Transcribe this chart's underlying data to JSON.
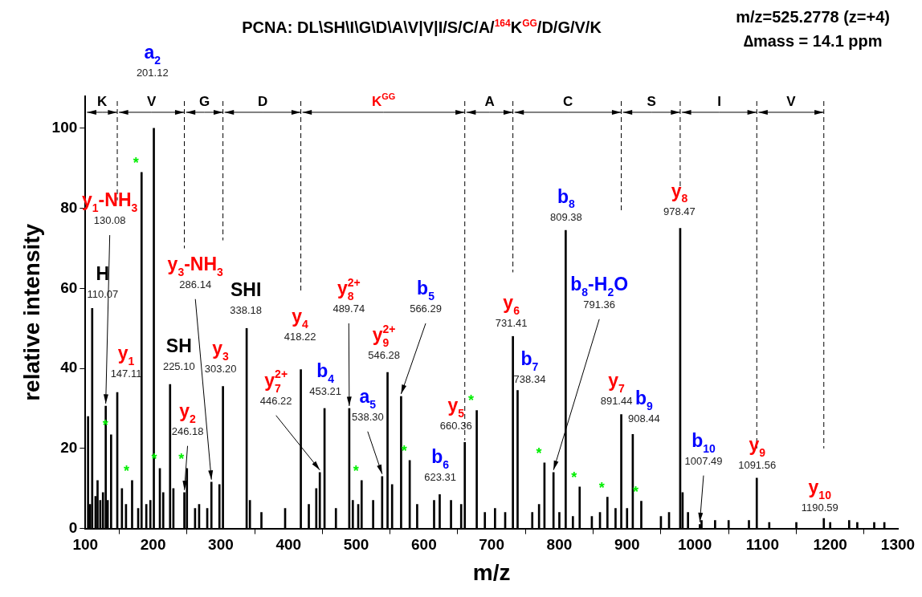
{
  "chart_data": {
    "type": "bar",
    "title": "PCNA: DL\\SH\\I\\G\\D\\A\\V|V|I/S/C/A/$^{164}$K$^{GG}$/D/G/V/K",
    "xlabel": "m/z",
    "ylabel": "relative intensity",
    "x": [
      104,
      107,
      110.07,
      115,
      118,
      122,
      126,
      130.08,
      133,
      138,
      147.11,
      154,
      160,
      169,
      178,
      183,
      190,
      196,
      201.12,
      210,
      215,
      225.1,
      230,
      246.18,
      250,
      262,
      268,
      280,
      286.14,
      298,
      303.2,
      338.18,
      343,
      360,
      395,
      418.22,
      430,
      441,
      446.22,
      453.21,
      470,
      489.74,
      495,
      503,
      508,
      525,
      538.3,
      546.28,
      553,
      566.29,
      579,
      590,
      615,
      623.31,
      640,
      655,
      660.36,
      678,
      690,
      705,
      720,
      731.41,
      738.34,
      760,
      770,
      778,
      791.36,
      800,
      809.38,
      820,
      830,
      848,
      860,
      871,
      883,
      891.44,
      900,
      908.44,
      921,
      950,
      962,
      978.47,
      982,
      990,
      1007.49,
      1010,
      1030,
      1050,
      1080,
      1091.56,
      1110,
      1150,
      1190.59,
      1200,
      1228,
      1240,
      1265,
      1280
    ],
    "series": [
      {
        "color": "#000000",
        "values": [
          28,
          6,
          55,
          8,
          12,
          7,
          9,
          30.6,
          7,
          23.4,
          34,
          10,
          6,
          12,
          5,
          89,
          6,
          7,
          100,
          15,
          9,
          36,
          10,
          9,
          15,
          5,
          6,
          5,
          11.6,
          11,
          35.5,
          50,
          7,
          4,
          5,
          39.7,
          6,
          10,
          14,
          30,
          5,
          30,
          7,
          6,
          12,
          7,
          13,
          39,
          11,
          33,
          17,
          6,
          7,
          8.5,
          7,
          6,
          21.5,
          29.5,
          4,
          5,
          4,
          48,
          34.5,
          4,
          6,
          16.4,
          14,
          4,
          74.5,
          3,
          10.4,
          3,
          4,
          7.8,
          5,
          28.5,
          5,
          23.5,
          6.8,
          3,
          4,
          75,
          9,
          4,
          1,
          2,
          2,
          2,
          2,
          12.6,
          1.5,
          1.5,
          2.5,
          1.5,
          2,
          1.5,
          1.5,
          1.5
        ]
      }
    ],
    "xlim": [
      100,
      1300
    ],
    "xticks": [
      100,
      200,
      300,
      400,
      500,
      600,
      700,
      800,
      900,
      1000,
      1100,
      1200,
      1300
    ],
    "ylim": [
      0,
      108
    ],
    "yticks": [
      0,
      20,
      40,
      60,
      80,
      100
    ],
    "ref_lines": [
      {
        "axis": "x",
        "value": 147.11,
        "label": null,
        "color": "#000000",
        "line_style": "dashed"
      },
      {
        "axis": "x",
        "value": 246.18,
        "label": null,
        "color": "#000000",
        "line_style": "dashed"
      },
      {
        "axis": "x",
        "value": 303.2,
        "label": null,
        "color": "#000000",
        "line_style": "dashed"
      },
      {
        "axis": "x",
        "value": 418.22,
        "label": null,
        "color": "#000000",
        "line_style": "dashed"
      },
      {
        "axis": "x",
        "value": 660.36,
        "label": null,
        "color": "#000000",
        "line_style": "dashed"
      },
      {
        "axis": "x",
        "value": 731.41,
        "label": null,
        "color": "#000000",
        "line_style": "dashed"
      },
      {
        "axis": "x",
        "value": 891.44,
        "label": null,
        "color": "#000000",
        "line_style": "dashed"
      },
      {
        "axis": "x",
        "value": 978.47,
        "label": null,
        "color": "#000000",
        "line_style": "dashed"
      },
      {
        "axis": "x",
        "value": 1091.56,
        "label": null,
        "color": "#000000",
        "line_style": "dashed"
      },
      {
        "axis": "x",
        "value": 1190.59,
        "label": null,
        "color": "#000000",
        "line_style": "dashed"
      }
    ],
    "annotations": [
      "m/z=525.2778 (z=+4)",
      "∆mass = 14.1 ppm",
      "a$_{2}$",
      "201.12",
      {
        "text": "K",
        "x": 147.11,
        "y": 104
      },
      {
        "text": "V",
        "x": 246.18,
        "y": 104
      },
      {
        "text": "G",
        "x": 303.2,
        "y": 104
      },
      {
        "text": "D",
        "x": 418.22,
        "y": 104
      },
      {
        "text": "K$^{GG}$",
        "x": 660.36,
        "y": 104
      },
      {
        "text": "A",
        "x": 731.41,
        "y": 104
      },
      {
        "text": "C",
        "x": 891.44,
        "y": 104
      },
      {
        "text": "S",
        "x": 978.47,
        "y": 104
      },
      {
        "text": "I",
        "x": 1091.56,
        "y": 104
      },
      {
        "text": "V",
        "x": 1190.59,
        "y": 104
      },
      {
        "text": "H",
        "x": 110.07,
        "y": 55
      },
      {
        "text": "110.07",
        "x": 110.07,
        "y": 55
      },
      {
        "text": "y$_{1}$-NH$_{3}$",
        "x": 130.08,
        "y": 30.6
      },
      {
        "text": "130.08",
        "x": 130.08,
        "y": 30.6
      },
      {
        "text": "y$_{1}$",
        "x": 147.11,
        "y": 34
      },
      {
        "text": "147.11",
        "x": 147.11,
        "y": 34
      },
      {
        "text": "SH",
        "x": 225.1,
        "y": 36
      },
      {
        "text": "225.10",
        "x": 225.1,
        "y": 36
      },
      {
        "text": "y$_{2}$",
        "x": 246.18,
        "y": 9
      },
      {
        "text": "246.18",
        "x": 246.18,
        "y": 9
      },
      {
        "text": "y$_{3}$-NH$_{3}$",
        "x": 286.14,
        "y": 11.6
      },
      {
        "text": "286.14",
        "x": 286.14,
        "y": 11.6
      },
      {
        "text": "y$_{3}$",
        "x": 303.2,
        "y": 35.5
      },
      {
        "text": "303.20",
        "x": 303.2,
        "y": 35.5
      },
      {
        "text": "SHI",
        "x": 338.18,
        "y": 50
      },
      {
        "text": "338.18",
        "x": 338.18,
        "y": 50
      },
      {
        "text": "y$_{4}$",
        "x": 418.22,
        "y": 39.7
      },
      {
        "text": "418.22",
        "x": 418.22,
        "y": 39.7
      },
      {
        "text": "y$_{7}$$^{2+}$",
        "x": 446.22,
        "y": 14
      },
      {
        "text": "446.22",
        "x": 446.22,
        "y": 14
      },
      {
        "text": "b$_{4}$",
        "x": 453.21,
        "y": 30
      },
      {
        "text": "453.21",
        "x": 453.21,
        "y": 30
      },
      {
        "text": "y$_{8}$$^{2+}$",
        "x": 489.74,
        "y": 30
      },
      {
        "text": "489.74",
        "x": 489.74,
        "y": 30
      },
      {
        "text": "y$_{9}$$^{2+}$",
        "x": 546.28,
        "y": 39
      },
      {
        "text": "546.28",
        "x": 546.28,
        "y": 39
      },
      {
        "text": "a$_{5}$",
        "x": 538.3,
        "y": 13
      },
      {
        "text": "538.30",
        "x": 538.3,
        "y": 13
      },
      {
        "text": "b$_{5}$",
        "x": 566.29,
        "y": 33
      },
      {
        "text": "566.29",
        "x": 566.29,
        "y": 33
      },
      {
        "text": "b$_{6}$",
        "x": 623.31,
        "y": 8.5
      },
      {
        "text": "623.31",
        "x": 623.31,
        "y": 8.5
      },
      {
        "text": "y$_{5}$",
        "x": 660.36,
        "y": 21.5
      },
      {
        "text": "660.36",
        "x": 660.36,
        "y": 21.5
      },
      {
        "text": "y$_{6}$",
        "x": 731.41,
        "y": 48
      },
      {
        "text": "731.41",
        "x": 731.41,
        "y": 48
      },
      {
        "text": "b$_{7}$",
        "x": 738.34,
        "y": 34.5
      },
      {
        "text": "738.34",
        "x": 738.34,
        "y": 34.5
      },
      {
        "text": "b$_{8}$",
        "x": 809.38,
        "y": 74.5
      },
      {
        "text": "809.38",
        "x": 809.38,
        "y": 74.5
      },
      {
        "text": "b$_{8}$-H$_{2}$O",
        "x": 791.36,
        "y": 14
      },
      {
        "text": "791.36",
        "x": 791.36,
        "y": 14
      },
      {
        "text": "y$_{7}$",
        "x": 891.44,
        "y": 28.5
      },
      {
        "text": "891.44",
        "x": 891.44,
        "y": 28.5
      },
      {
        "text": "b$_{9}$",
        "x": 908.44,
        "y": 23.5
      },
      {
        "text": "908.44",
        "x": 908.44,
        "y": 23.5
      },
      {
        "text": "y$_{8}$",
        "x": 978.47,
        "y": 75
      },
      {
        "text": "978.47",
        "x": 978.47,
        "y": 75
      },
      {
        "text": "b$_{10}$",
        "x": 1007.49,
        "y": 1
      },
      {
        "text": "1007.49",
        "x": 1007.49,
        "y": 1
      },
      {
        "text": "y$_{9}$",
        "x": 1091.56,
        "y": 12.6
      },
      {
        "text": "1091.56",
        "x": 1091.56,
        "y": 12.6
      },
      {
        "text": "y$_{10}$",
        "x": 1190.59,
        "y": 2.5
      },
      {
        "text": "1190.59",
        "x": 1190.59,
        "y": 2.5
      },
      {
        "text": "*",
        "x": 138,
        "y": 23.4
      },
      {
        "text": "*",
        "x": 169,
        "y": 12
      },
      {
        "text": "*",
        "x": 183,
        "y": 89
      },
      {
        "text": "*",
        "x": 210,
        "y": 15
      },
      {
        "text": "*",
        "x": 250,
        "y": 15
      },
      {
        "text": "*",
        "x": 508,
        "y": 12
      },
      {
        "text": "*",
        "x": 579,
        "y": 17
      },
      {
        "text": "*",
        "x": 678,
        "y": 29.5
      },
      {
        "text": "*",
        "x": 778,
        "y": 16.4
      },
      {
        "text": "*",
        "x": 830,
        "y": 10.4
      },
      {
        "text": "*",
        "x": 871,
        "y": 7.8
      },
      {
        "text": "*",
        "x": 921,
        "y": 6.8
      }
    ]
  }
}
